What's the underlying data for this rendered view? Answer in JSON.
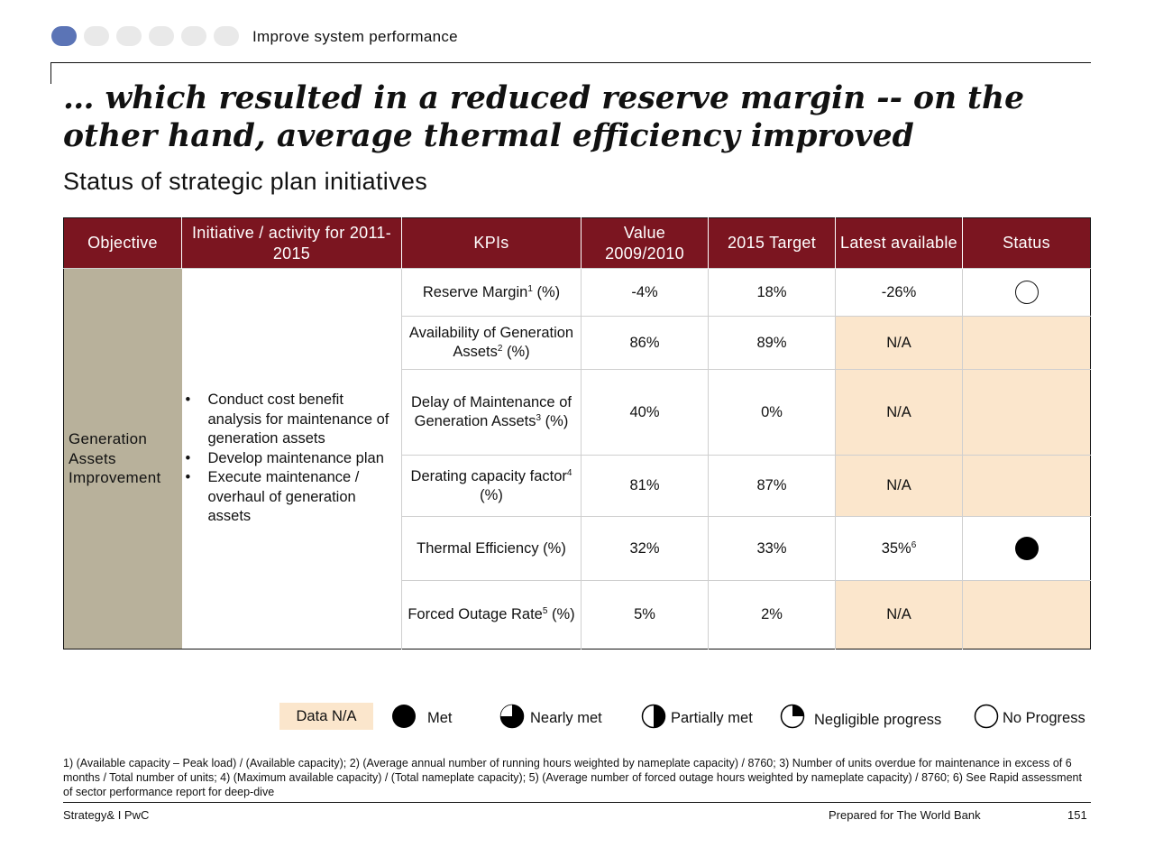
{
  "header": {
    "section_title": "Improve system performance",
    "progress_dots_total": 6,
    "progress_dots_active": 1,
    "active_dot_color": "#5b74b6"
  },
  "headline": "… which resulted in a reduced reserve margin -- on the other hand, average thermal efficiency improved",
  "subtitle": "Status of strategic plan initiatives",
  "table": {
    "header_color": "#7b1520",
    "columns": {
      "objective": "Objective",
      "initiative": "Initiative / activity for 2011-2015",
      "kpis": "KPIs",
      "value": "Value 2009/2010",
      "target": "2015 Target",
      "latest": "Latest available",
      "status": "Status"
    },
    "objective": "Generation Assets Improvement",
    "initiatives": [
      "Conduct cost benefit analysis for maintenance of generation assets",
      "Develop maintenance plan",
      "Execute maintenance / overhaul of generation assets"
    ],
    "rows": [
      {
        "kpi": "Reserve Margin",
        "note": "1",
        "kpi_suffix": " (%)",
        "value": "-4%",
        "target": "18%",
        "latest": "-26%",
        "latest_note": "",
        "status": "no-progress-icon"
      },
      {
        "kpi": "Availability of Generation Assets",
        "note": "2",
        "kpi_suffix": " (%)",
        "value": "86%",
        "target": "89%",
        "latest": "N/A",
        "latest_note": "",
        "status": "data-na"
      },
      {
        "kpi": "Delay of Maintenance of Generation Assets",
        "note": "3",
        "kpi_suffix": " (%)",
        "value": "40%",
        "target": "0%",
        "latest": "N/A",
        "latest_note": "",
        "status": "data-na"
      },
      {
        "kpi": "Derating capacity factor",
        "note": "4",
        "kpi_suffix": " (%)",
        "value": "81%",
        "target": "87%",
        "latest": "N/A",
        "latest_note": "",
        "status": "data-na"
      },
      {
        "kpi": "Thermal Efficiency",
        "note": "",
        "kpi_suffix": " (%)",
        "value": "32%",
        "target": "33%",
        "latest": "35%",
        "latest_note": "6",
        "status": "met-icon"
      },
      {
        "kpi": "Forced Outage Rate",
        "note": "5",
        "kpi_suffix": " (%)",
        "value": "5%",
        "target": "2%",
        "latest": "N/A",
        "latest_note": "",
        "status": "data-na"
      }
    ],
    "na_fill_color": "#fbe6cc",
    "objective_fill_color": "#b8b19b"
  },
  "legend": {
    "data_na": "Data N/A",
    "met": "Met",
    "nearly_met": "Nearly met",
    "partially_met": "Partially met",
    "negligible_progress": "Negligible progress",
    "no_progress": "No Progress"
  },
  "footnotes": "1) (Available capacity – Peak load) / (Available capacity); 2) (Average annual number of running hours weighted by nameplate capacity) / 8760; 3) Number of units overdue for maintenance in excess of 6 months / Total number of units; 4) (Maximum available capacity) / (Total nameplate capacity); 5) (Average number of forced outage hours weighted by nameplate capacity) / 8760; 6) See Rapid assessment of sector performance report for deep-dive",
  "footer": {
    "left": "Strategy& I PwC",
    "prepared_for": "Prepared for The World Bank",
    "page_number": "151"
  }
}
